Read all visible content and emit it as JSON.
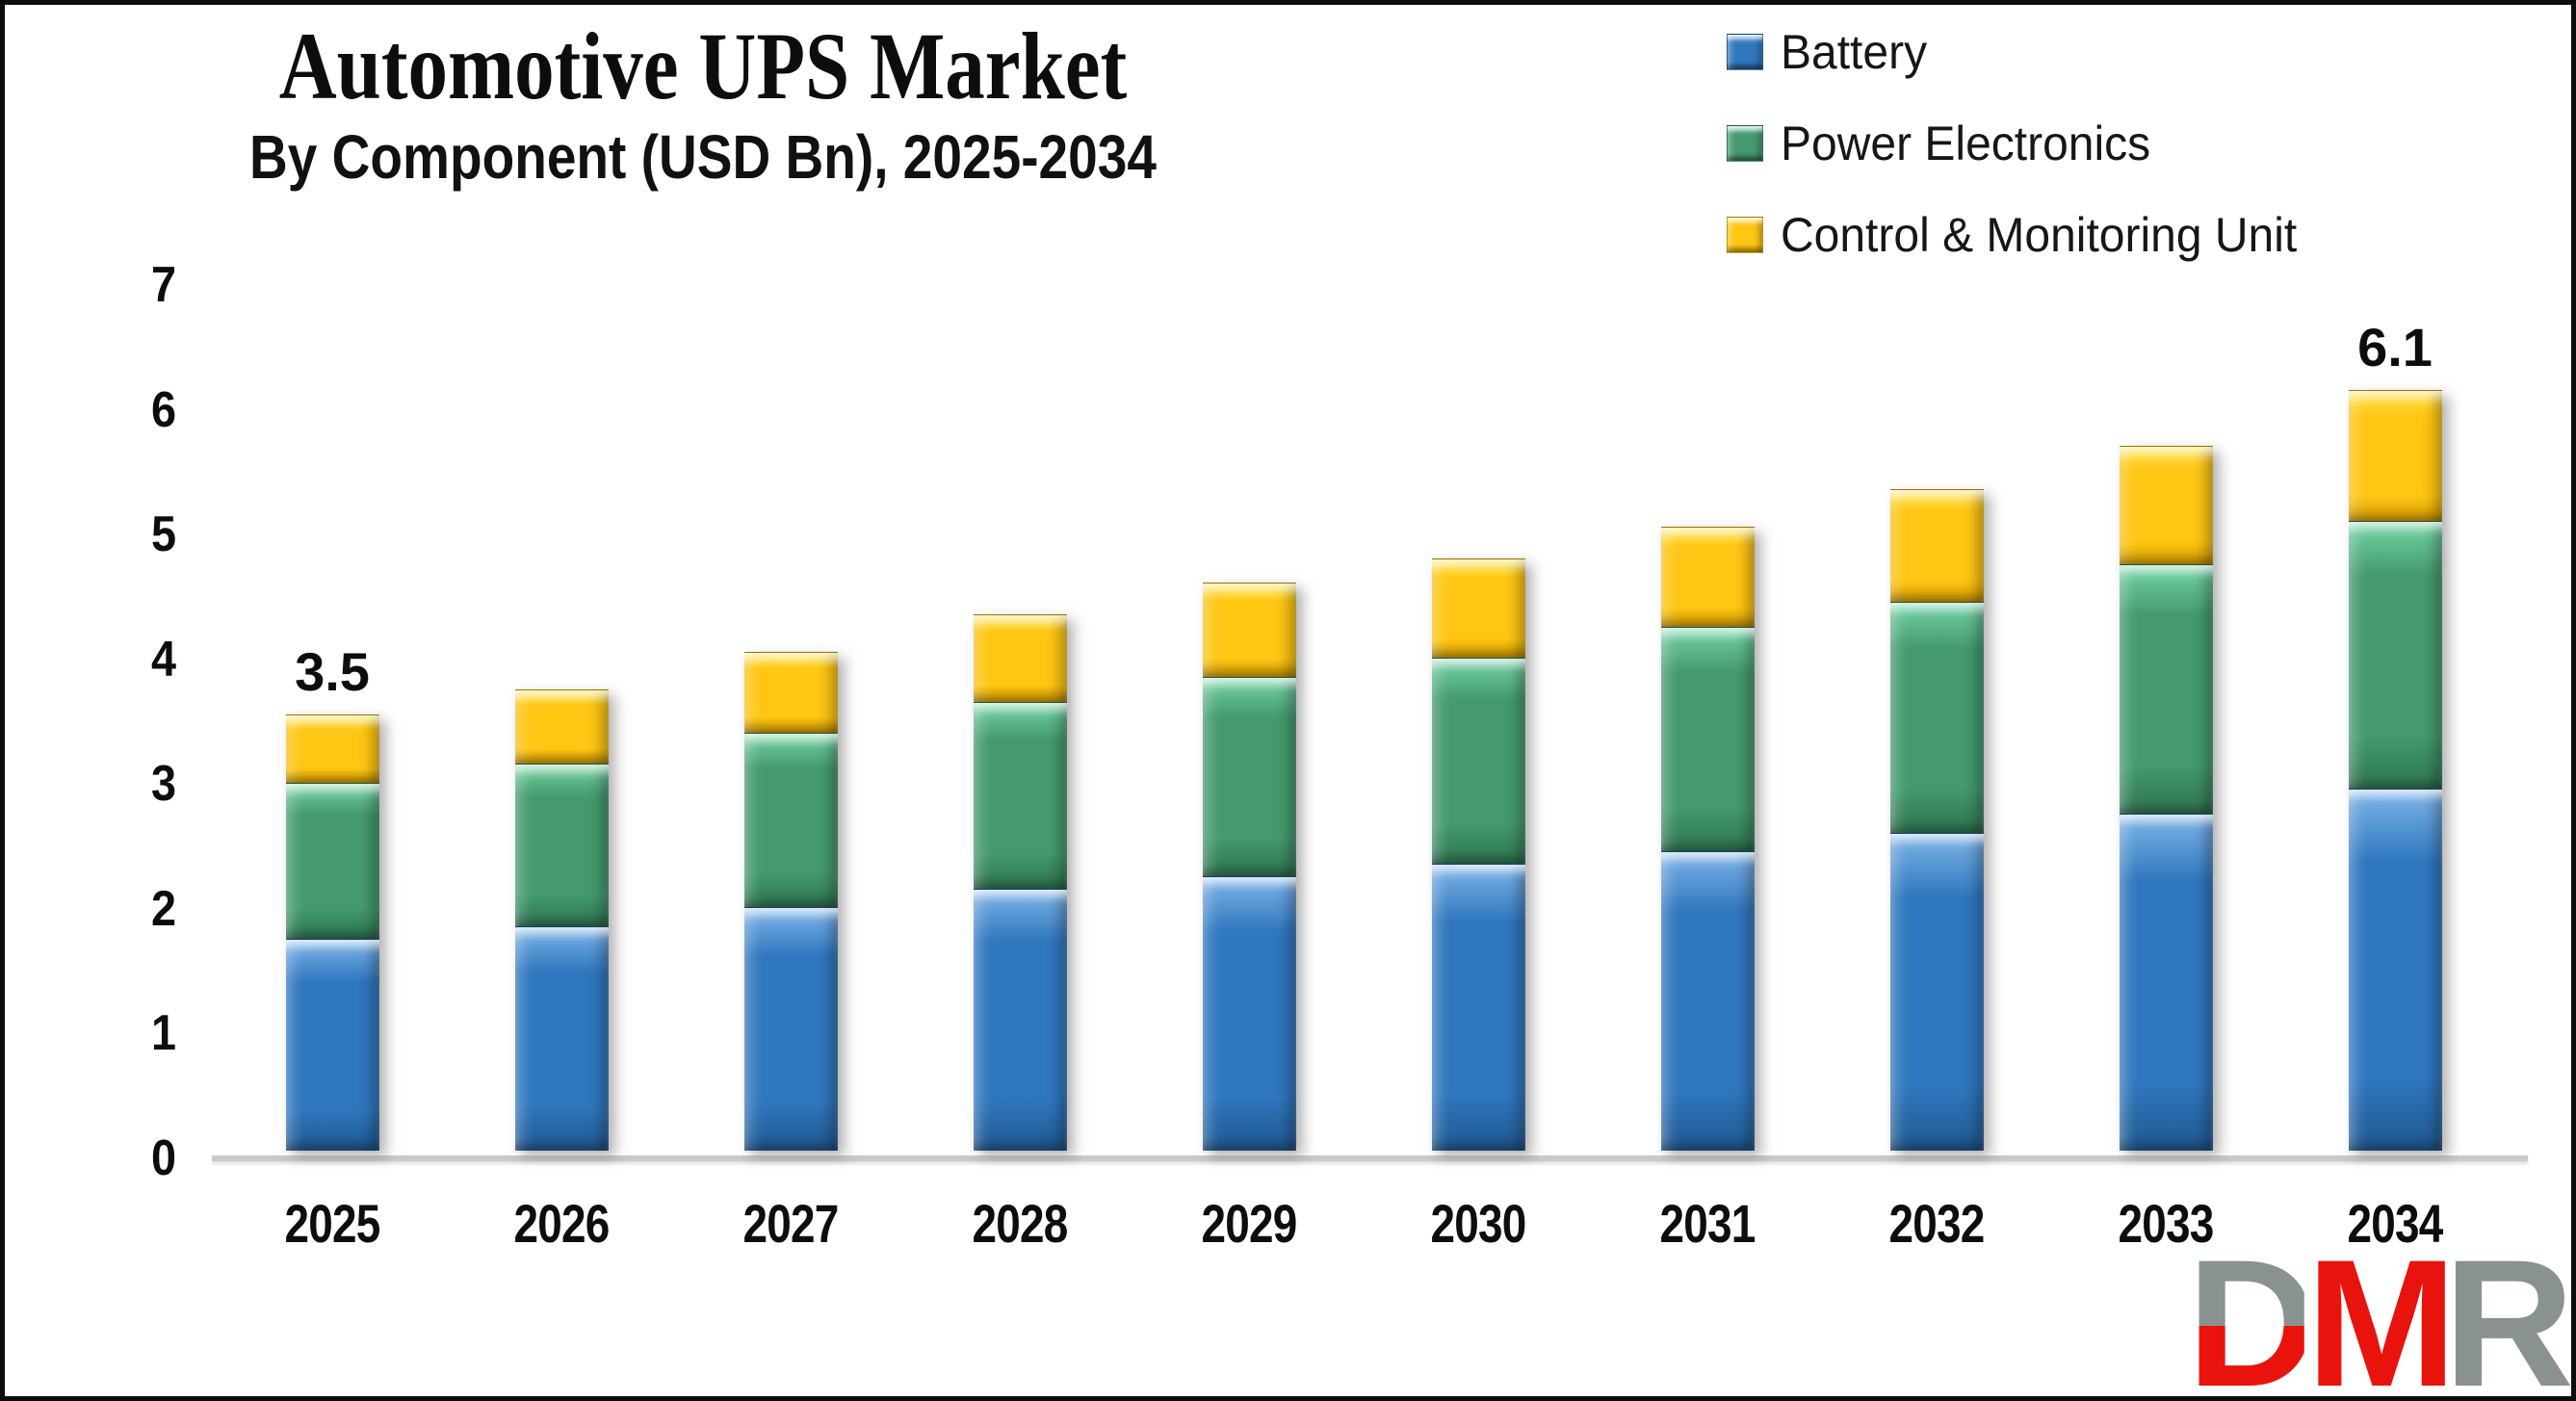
{
  "header": {
    "title": "Automotive UPS Market",
    "subtitle": "By Component (USD Bn), 2025-2034"
  },
  "chart_data": {
    "type": "bar",
    "stacked": true,
    "title": "Automotive UPS Market",
    "subtitle": "By Component (USD Bn), 2025-2034",
    "unit": "USD Bn",
    "categories": [
      "2025",
      "2026",
      "2027",
      "2028",
      "2029",
      "2030",
      "2031",
      "2032",
      "2033",
      "2034"
    ],
    "series": [
      {
        "name": "Battery",
        "color": "#2F77BE",
        "light": "#7FB5E8",
        "dark": "#1F578F",
        "values": [
          1.7,
          1.8,
          1.95,
          2.1,
          2.2,
          2.3,
          2.4,
          2.55,
          2.7,
          2.9
        ]
      },
      {
        "name": "Power Electronics",
        "color": "#449A6E",
        "light": "#74D3A6",
        "dark": "#2E7450",
        "values": [
          1.25,
          1.3,
          1.4,
          1.5,
          1.6,
          1.65,
          1.8,
          1.85,
          2.0,
          2.15
        ]
      },
      {
        "name": "Control & Monitoring Unit",
        "color": "#FFC613",
        "light": "#FFE34A",
        "dark": "#D79E00",
        "values": [
          0.55,
          0.6,
          0.65,
          0.7,
          0.75,
          0.8,
          0.8,
          0.9,
          0.95,
          1.05
        ]
      }
    ],
    "totals": [
      3.5,
      3.7,
      4.0,
      4.3,
      4.55,
      4.75,
      5.0,
      5.3,
      5.65,
      6.1
    ],
    "data_labels": {
      "2025": "3.5",
      "2034": "6.1"
    },
    "ylim": [
      0,
      7
    ],
    "yticks": [
      0,
      1,
      2,
      3,
      4,
      5,
      6,
      7
    ],
    "grid": false,
    "legend_position": "top-right",
    "axis_line_color": "#c9c9c9"
  },
  "logo": {
    "d": "D",
    "m": "M",
    "r": "R",
    "gray": "#8A9290",
    "red": "#E8130D"
  }
}
